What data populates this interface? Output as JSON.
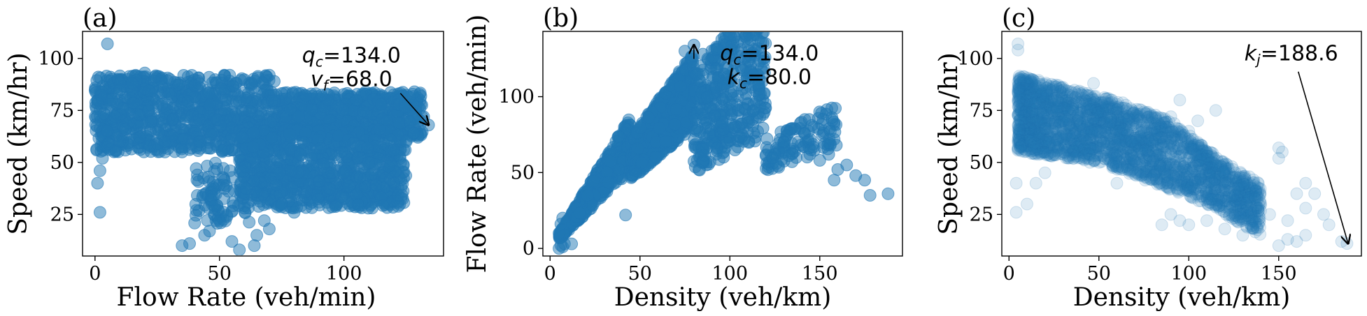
{
  "chart_data": [
    {
      "type": "scatter",
      "panel_label": "(a)",
      "xlabel": "Flow Rate (veh/min)",
      "ylabel": "Speed (km/hr)",
      "xlim": [
        -5,
        140
      ],
      "ylim": [
        5,
        113
      ],
      "xticks": [
        0,
        50,
        100
      ],
      "yticks": [
        25,
        50,
        75,
        100
      ],
      "color": "#1f77b4",
      "alpha": 0.5,
      "grid": false,
      "annotation": {
        "lines": [
          {
            "main": "q",
            "sub": "c",
            "rest": "=134.0"
          },
          {
            "main": "v",
            "sub": "f",
            "rest": "=68.0"
          }
        ],
        "text_at": [
          103,
          98
        ],
        "arrow_to": [
          134,
          68
        ]
      },
      "series": [
        {
          "clusters": [
            {
              "x": [
                0,
                70
              ],
              "y": [
                55,
                92
              ],
              "n": 850
            },
            {
              "x": [
                70,
                132
              ],
              "y": [
                62,
                84
              ],
              "n": 650
            },
            {
              "x": [
                58,
                125
              ],
              "y": [
                28,
                66
              ],
              "n": 950
            },
            {
              "x": [
                40,
                62
              ],
              "y": [
                20,
                50
              ],
              "n": 90
            }
          ],
          "points": [
            [
              5,
              107
            ],
            [
              2,
              46
            ],
            [
              2,
              26
            ],
            [
              1,
              40
            ],
            [
              3,
              52
            ],
            [
              35,
              10
            ],
            [
              38,
              11
            ],
            [
              44,
              15
            ],
            [
              46,
              17
            ],
            [
              50,
              22
            ],
            [
              53,
              24
            ],
            [
              55,
              12
            ],
            [
              60,
              28
            ],
            [
              58,
              8
            ],
            [
              64,
              10
            ],
            [
              48,
              29
            ],
            [
              90,
              41
            ],
            [
              95,
              45
            ],
            [
              72,
              89
            ],
            [
              10,
              85
            ],
            [
              15,
              88
            ],
            [
              20,
              93
            ],
            [
              30,
              90
            ],
            [
              40,
              87
            ],
            [
              8,
              72
            ],
            [
              25,
              56
            ],
            [
              35,
              55
            ],
            [
              45,
              57
            ],
            [
              55,
              56
            ],
            [
              40,
              65
            ],
            [
              42,
              60
            ],
            [
              120,
              56
            ],
            [
              125,
              60
            ],
            [
              128,
              64
            ],
            [
              130,
              70
            ],
            [
              132,
              72
            ],
            [
              134,
              68
            ],
            [
              110,
              50
            ],
            [
              100,
              45
            ],
            [
              85,
              36
            ],
            [
              75,
              30
            ],
            [
              68,
              22
            ],
            [
              80,
              26
            ],
            [
              70,
              18
            ],
            [
              65,
              15
            ],
            [
              105,
              80
            ],
            [
              115,
              78
            ],
            [
              10,
              60
            ],
            [
              12,
              66
            ],
            [
              18,
              62
            ],
            [
              22,
              58
            ],
            [
              28,
              60
            ]
          ]
        }
      ]
    },
    {
      "type": "scatter",
      "panel_label": "(b)",
      "xlabel": "Density (veh/km)",
      "ylabel": "Flow Rate (veh/min)",
      "xlim": [
        -4,
        196
      ],
      "ylim": [
        -5,
        143
      ],
      "xticks": [
        0,
        50,
        100,
        150
      ],
      "yticks": [
        0,
        50,
        100
      ],
      "color": "#1f77b4",
      "alpha": 0.5,
      "grid": false,
      "annotation": {
        "lines": [
          {
            "main": "q",
            "sub": "c",
            "rest": "=134.0"
          },
          {
            "main": "k",
            "sub": "c",
            "rest": "=80.0"
          }
        ],
        "text_at": [
          122,
          124
        ],
        "arrow_to": [
          80,
          134
        ]
      },
      "series": [
        {
          "bands": [
            {
              "k0": 5,
              "k1": 45,
              "low_slope": 1.15,
              "high_slope": 1.95,
              "n": 500
            },
            {
              "k0": 45,
              "k1": 80,
              "low_slope": 1.0,
              "high_slope": 1.62,
              "n": 650
            },
            {
              "k0": 80,
              "k1": 120,
              "low_slope": 0.62,
              "high_slope": 1.45,
              "n": 450
            },
            {
              "k0": 120,
              "k1": 160,
              "low_slope": 0.42,
              "high_slope": 0.6,
              "n": 110
            }
          ],
          "points": [
            [
              80,
              134
            ],
            [
              75,
              130
            ],
            [
              85,
              128
            ],
            [
              165,
              55
            ],
            [
              175,
              45
            ],
            [
              188,
              36
            ],
            [
              178,
              35
            ],
            [
              170,
              48
            ],
            [
              160,
              52
            ],
            [
              155,
              62
            ],
            [
              150,
              58
            ],
            [
              145,
              65
            ],
            [
              130,
              70
            ],
            [
              125,
              62
            ],
            [
              42,
              22
            ],
            [
              5,
              0
            ],
            [
              6,
              2
            ],
            [
              7,
              1
            ],
            [
              8,
              3
            ],
            [
              5,
              10
            ],
            [
              6,
              16
            ],
            [
              7,
              20
            ],
            [
              12,
              3
            ],
            [
              158,
              45
            ]
          ]
        }
      ]
    },
    {
      "type": "scatter",
      "panel_label": "(c)",
      "xlabel": "Density (veh/km)",
      "ylabel": "Speed (km/hr)",
      "xlim": [
        -4,
        196
      ],
      "ylim": [
        5,
        113
      ],
      "xticks": [
        0,
        50,
        100,
        150
      ],
      "yticks": [
        25,
        50,
        75,
        100
      ],
      "color": "#1f77b4",
      "alpha": 0.15,
      "grid": false,
      "annotation": {
        "lines": [
          {
            "main": "k",
            "sub": "j",
            "rest": "=188.6"
          }
        ],
        "text_at": [
          157,
          99
        ],
        "arrow_to": [
          188.6,
          11
        ]
      },
      "series": [
        {
          "envelope": {
            "x": [
              5,
              140
            ],
            "top_at": [
              [
                5,
                92
              ],
              [
                60,
                80
              ],
              [
                90,
                70
              ],
              [
                120,
                50
              ],
              [
                140,
                40
              ]
            ],
            "bottom_at": [
              [
                5,
                55
              ],
              [
                50,
                50
              ],
              [
                80,
                40
              ],
              [
                110,
                30
              ],
              [
                140,
                15
              ]
            ]
          },
          "n": 2600,
          "points": [
            [
              5,
              107
            ],
            [
              5,
              104
            ],
            [
              4,
              26
            ],
            [
              4,
              40
            ],
            [
              47,
              88
            ],
            [
              150,
              57
            ],
            [
              150,
              52
            ],
            [
              152,
              55
            ],
            [
              160,
              35
            ],
            [
              165,
              40
            ],
            [
              170,
              35
            ],
            [
              175,
              25
            ],
            [
              178,
              20
            ],
            [
              188,
              11
            ],
            [
              185,
              12
            ],
            [
              160,
              12
            ],
            [
              165,
              15
            ],
            [
              150,
              10
            ],
            [
              155,
              13
            ],
            [
              155,
              22
            ],
            [
              165,
              28
            ],
            [
              140,
              30
            ],
            [
              145,
              25
            ],
            [
              130,
              15
            ],
            [
              120,
              18
            ],
            [
              90,
              25
            ],
            [
              95,
              22
            ],
            [
              85,
              20
            ],
            [
              100,
              20
            ],
            [
              110,
              22
            ],
            [
              60,
              40
            ],
            [
              45,
              50
            ],
            [
              30,
              55
            ],
            [
              20,
              45
            ],
            [
              15,
              40
            ],
            [
              10,
              30
            ],
            [
              12,
              60
            ],
            [
              100,
              65
            ],
            [
              110,
              55
            ],
            [
              105,
              70
            ],
            [
              95,
              80
            ],
            [
              90,
              72
            ],
            [
              115,
              75
            ]
          ]
        }
      ]
    }
  ]
}
